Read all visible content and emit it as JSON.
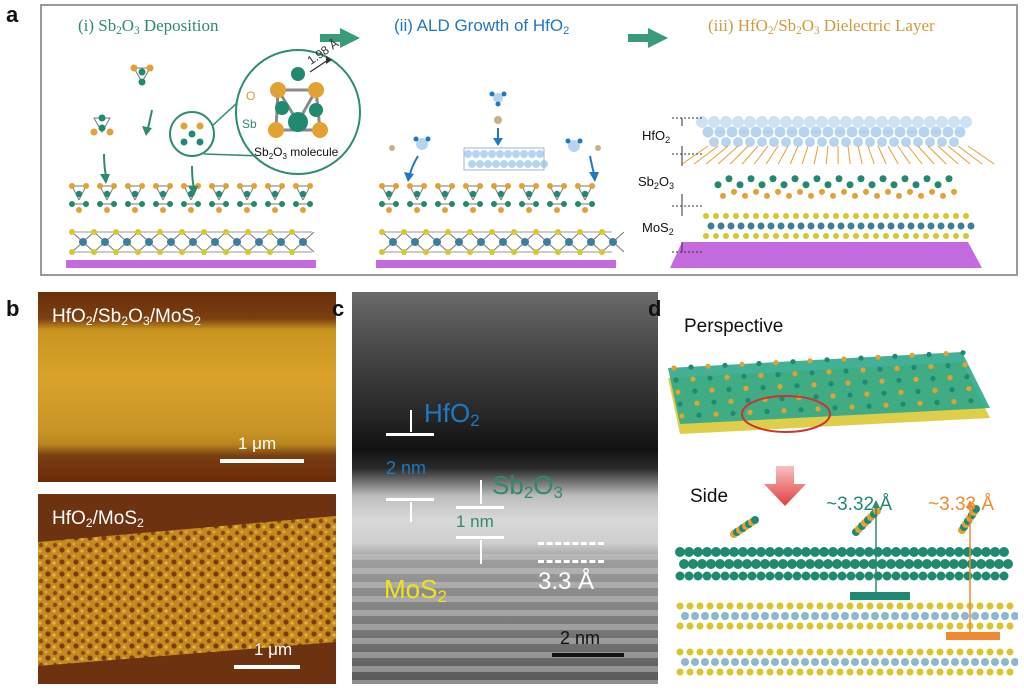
{
  "panels": {
    "a": "a",
    "b": "b",
    "c": "c",
    "d": "d"
  },
  "panel_a": {
    "step1": {
      "pre": "(i) Sb",
      "s1": "2",
      "mid": "O",
      "s2": "3",
      "post": " Deposition"
    },
    "step2": {
      "pre": "(ii) ALD Growth of HfO",
      "s1": "2"
    },
    "step3": {
      "pre": "(iii) HfO",
      "s1": "2",
      "mid": "/Sb",
      "s2": "2",
      "mid2": "O",
      "s3": "3",
      "post": " Dielectric Layer"
    },
    "bond_length": "1.98 Å",
    "atom_O": "O",
    "atom_Sb": "Sb",
    "molecule_label": {
      "pre": "Sb",
      "s1": "2",
      "mid": "O",
      "s2": "3",
      "post": " molecule"
    },
    "layer_labels": {
      "hfo2": {
        "pre": "HfO",
        "s1": "2"
      },
      "sb2o3": {
        "pre": "Sb",
        "s1": "2",
        "mid": "O",
        "s2": "3"
      },
      "mos2": {
        "pre": "MoS",
        "s1": "2"
      }
    },
    "colors": {
      "sb": "#1f8a70",
      "o": "#e2a233",
      "mo": "#3b7fa0",
      "s": "#d8c62a",
      "substrate": "#c46be0",
      "hf": "#b7d4ee"
    }
  },
  "panel_b": {
    "top_label": {
      "pre": "HfO",
      "s1": "2",
      "mid": "/Sb",
      "s2": "2",
      "mid2": "O",
      "s3": "3",
      "mid3": "/MoS",
      "s4": "2"
    },
    "bottom_label": {
      "pre": "HfO",
      "s1": "2",
      "mid": "/MoS",
      "s2": "2"
    },
    "scale_top": "1 μm",
    "scale_bottom": "1 μm"
  },
  "panel_c": {
    "hfo2": {
      "pre": "HfO",
      "s1": "2"
    },
    "thickness_hfo2": "2 nm",
    "sb2o3": {
      "pre": "Sb",
      "s1": "2",
      "mid": "O",
      "s2": "3"
    },
    "thickness_sb2o3": "1 nm",
    "mos2": {
      "pre": "MoS",
      "s1": "2"
    },
    "spacing": "3.3 Å",
    "scale": "2 nm"
  },
  "panel_d": {
    "perspective": "Perspective",
    "side": "Side",
    "dist_green": "~3.32 Å",
    "dist_orange": "~3.33 Å"
  }
}
